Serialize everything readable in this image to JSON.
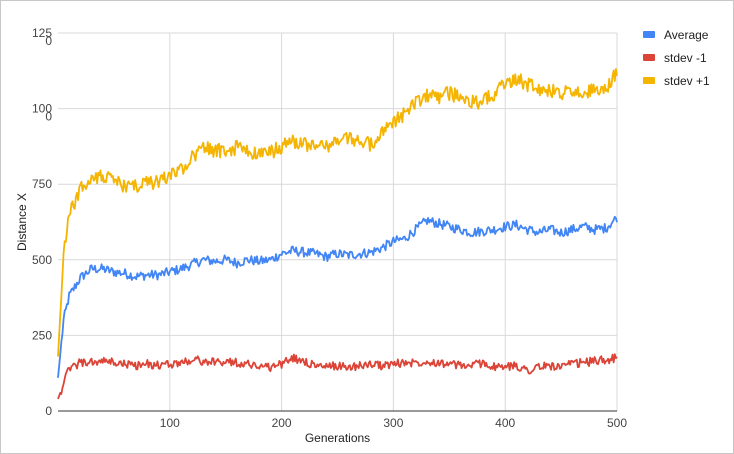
{
  "chart_data": {
    "type": "line",
    "title": "",
    "xlabel": "Generations",
    "ylabel": "Distance X",
    "xlim": [
      0,
      500
    ],
    "ylim": [
      0,
      1250
    ],
    "grid": true,
    "legend_position": "right",
    "x_ticks": [
      "100",
      "200",
      "300",
      "400",
      "500"
    ],
    "y_ticks": [
      {
        "value": 0,
        "lines": [
          "0"
        ]
      },
      {
        "value": 250,
        "lines": [
          "250"
        ]
      },
      {
        "value": 500,
        "lines": [
          "500"
        ]
      },
      {
        "value": 750,
        "lines": [
          "750"
        ]
      },
      {
        "value": 1000,
        "lines": [
          "100",
          "0"
        ]
      },
      {
        "value": 1250,
        "lines": [
          "125",
          "0"
        ]
      }
    ],
    "x": [
      0,
      5,
      10,
      20,
      30,
      40,
      50,
      60,
      70,
      80,
      90,
      100,
      110,
      120,
      130,
      140,
      150,
      160,
      170,
      180,
      190,
      200,
      210,
      220,
      230,
      240,
      250,
      260,
      270,
      280,
      290,
      300,
      310,
      320,
      330,
      340,
      350,
      360,
      370,
      380,
      390,
      400,
      410,
      420,
      430,
      440,
      450,
      460,
      470,
      480,
      490,
      500
    ],
    "series": [
      {
        "name": "Average",
        "color": "#4285f4",
        "values": [
          110,
          300,
          380,
          440,
          470,
          470,
          460,
          455,
          445,
          450,
          450,
          460,
          470,
          485,
          500,
          495,
          500,
          490,
          500,
          495,
          500,
          520,
          530,
          525,
          520,
          510,
          520,
          515,
          520,
          525,
          540,
          560,
          570,
          600,
          630,
          620,
          610,
          600,
          590,
          595,
          600,
          610,
          615,
          600,
          590,
          600,
          590,
          600,
          610,
          600,
          605,
          640
        ]
      },
      {
        "name": "stdev -1",
        "color": "#db4437",
        "values": [
          40,
          90,
          140,
          160,
          160,
          165,
          160,
          155,
          150,
          155,
          150,
          155,
          160,
          170,
          165,
          160,
          165,
          160,
          155,
          150,
          145,
          155,
          175,
          165,
          150,
          145,
          150,
          145,
          150,
          155,
          150,
          155,
          160,
          160,
          165,
          160,
          155,
          150,
          150,
          160,
          145,
          145,
          150,
          135,
          145,
          150,
          145,
          155,
          160,
          165,
          170,
          175
        ]
      },
      {
        "name": "stdev +1",
        "color": "#f4b400",
        "values": [
          180,
          520,
          650,
          730,
          770,
          780,
          760,
          745,
          740,
          755,
          760,
          780,
          800,
          840,
          870,
          860,
          860,
          870,
          860,
          850,
          855,
          875,
          890,
          880,
          875,
          875,
          890,
          905,
          890,
          880,
          920,
          960,
          980,
          1020,
          1040,
          1040,
          1050,
          1040,
          1020,
          1020,
          1050,
          1080,
          1100,
          1080,
          1060,
          1060,
          1050,
          1060,
          1050,
          1060,
          1065,
          1120
        ]
      }
    ]
  }
}
